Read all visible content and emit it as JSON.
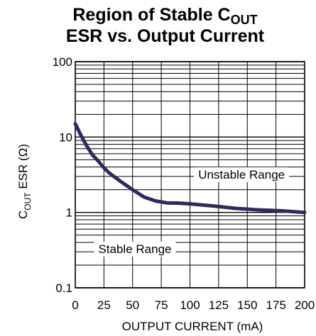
{
  "chart_data": {
    "type": "line",
    "title_line1_main": "Region of Stable C",
    "title_line1_sub": "OUT",
    "title_line2": "ESR vs. Output Current",
    "xlabel": "OUTPUT CURRENT (mA)",
    "ylabel_main": "C",
    "ylabel_sub": "OUT",
    "ylabel_rest": " ESR (Ω)",
    "x_scale": "linear",
    "y_scale": "log",
    "xlim": [
      0,
      200
    ],
    "ylim": [
      0.1,
      100
    ],
    "x_ticks": [
      0,
      25,
      50,
      75,
      100,
      125,
      150,
      175,
      200
    ],
    "x_tick_labels": [
      "0",
      "25",
      "50",
      "75",
      "100",
      "125",
      "150",
      "175",
      "200"
    ],
    "y_ticks": [
      0.1,
      1,
      10,
      100
    ],
    "y_tick_labels": [
      "0.1",
      "1",
      "10",
      "100"
    ],
    "grid": true,
    "annotations": [
      {
        "text": "Unstable Range",
        "x": 145,
        "y": 3.2
      },
      {
        "text": "Stable Range",
        "x": 52,
        "y": 0.33
      }
    ],
    "series": [
      {
        "color": "#2b2b62",
        "x": [
          0,
          5,
          10,
          15,
          20,
          25,
          30,
          40,
          50,
          60,
          70,
          80,
          90,
          100,
          120,
          140,
          160,
          180,
          200
        ],
        "y": [
          15,
          10.5,
          7.6,
          5.8,
          4.8,
          3.9,
          3.3,
          2.55,
          2.0,
          1.6,
          1.42,
          1.34,
          1.33,
          1.3,
          1.22,
          1.13,
          1.08,
          1.05,
          1.0
        ]
      }
    ]
  }
}
